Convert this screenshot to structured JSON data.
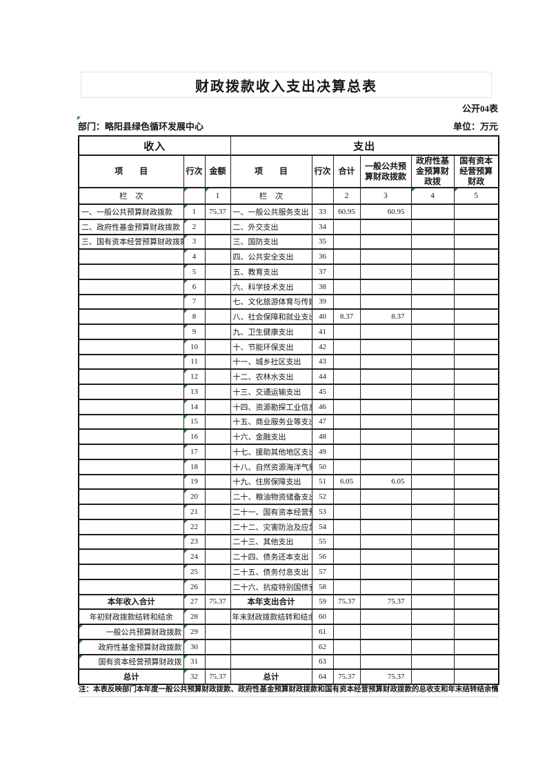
{
  "page": {
    "title": "财政拨款收入支出决算总表",
    "form_code": "公开04表",
    "department": "部门：略阳县绿色循环发展中心",
    "unit": "单位：万元",
    "note": "注：本表反映部门本年度一般公共预算财政拨款、政府性基金预算财政拨款和国有资本经营预算财政拨款的总收支和年末结转结余情况。"
  },
  "colors": {
    "triangle_marker": "#1f8b1f",
    "grid": "#1c1c1c"
  },
  "header": {
    "income_section": "收入",
    "expense_section": "支出",
    "item": "项　　目",
    "rowno": "行次",
    "amount": "金额",
    "total": "合计",
    "col_general": "一般公共预算财政拨款",
    "col_govfund": "政府性基金预算财政拨",
    "col_statecap": "国有资本经营预算财政",
    "colnum_label": "栏　次",
    "col1": "1",
    "col2": "2",
    "col3": "3",
    "col4": "4",
    "col5": "5"
  },
  "table": {
    "rows": [
      {
        "ii": "一、一般公共预算财政拨款",
        "is": "item",
        "in": "1",
        "ia": "75.37",
        "ei": "一、一般公共服务支出",
        "es": "item",
        "en": "33",
        "et": "60.95",
        "eg": "60.95",
        "ef": "",
        "ec": ""
      },
      {
        "ii": "二、政府性基金预算财政拨款",
        "is": "item",
        "in": "2",
        "ia": "",
        "ei": "二、外交支出",
        "es": "item",
        "en": "34",
        "et": "",
        "eg": "",
        "ef": "",
        "ec": ""
      },
      {
        "ii": "三、国有资本经营预算财政拨款",
        "is": "item",
        "in": "3",
        "ia": "",
        "ei": "三、国防支出",
        "es": "item",
        "en": "35",
        "et": "",
        "eg": "",
        "ef": "",
        "ec": ""
      },
      {
        "ii": "",
        "is": "item",
        "in": "4",
        "ia": "",
        "ei": "四、公共安全支出",
        "es": "item",
        "en": "36",
        "et": "",
        "eg": "",
        "ef": "",
        "ec": ""
      },
      {
        "ii": "",
        "is": "item",
        "in": "5",
        "ia": "",
        "ei": "五、教育支出",
        "es": "item",
        "en": "37",
        "et": "",
        "eg": "",
        "ef": "",
        "ec": ""
      },
      {
        "ii": "",
        "is": "item",
        "in": "6",
        "ia": "",
        "ei": "六、科学技术支出",
        "es": "item",
        "en": "38",
        "et": "",
        "eg": "",
        "ef": "",
        "ec": ""
      },
      {
        "ii": "",
        "is": "item",
        "in": "7",
        "ia": "",
        "ei": "七、文化旅游体育与传媒支",
        "es": "item",
        "en": "39",
        "et": "",
        "eg": "",
        "ef": "",
        "ec": ""
      },
      {
        "ii": "",
        "is": "item",
        "in": "8",
        "ia": "",
        "ei": "八、社会保障和就业支出",
        "es": "item",
        "en": "40",
        "et": "8.37",
        "eg": "8.37",
        "ef": "",
        "ec": ""
      },
      {
        "ii": "",
        "is": "item",
        "in": "9",
        "ia": "",
        "ei": "九、卫生健康支出",
        "es": "item",
        "en": "41",
        "et": "",
        "eg": "",
        "ef": "",
        "ec": ""
      },
      {
        "ii": "",
        "is": "item",
        "in": "10",
        "ia": "",
        "ei": "十、节能环保支出",
        "es": "item",
        "en": "42",
        "et": "",
        "eg": "",
        "ef": "",
        "ec": ""
      },
      {
        "ii": "",
        "is": "item",
        "in": "11",
        "ia": "",
        "ei": "十一、城乡社区支出",
        "es": "item",
        "en": "43",
        "et": "",
        "eg": "",
        "ef": "",
        "ec": ""
      },
      {
        "ii": "",
        "is": "item",
        "in": "12",
        "ia": "",
        "ei": "十二、农林水支出",
        "es": "item",
        "en": "44",
        "et": "",
        "eg": "",
        "ef": "",
        "ec": ""
      },
      {
        "ii": "",
        "is": "item",
        "in": "13",
        "ia": "",
        "ei": "十三、交通运输支出",
        "es": "item",
        "en": "45",
        "et": "",
        "eg": "",
        "ef": "",
        "ec": ""
      },
      {
        "ii": "",
        "is": "item",
        "in": "14",
        "ia": "",
        "ei": "十四、资源勘探工业信息等",
        "es": "item",
        "en": "46",
        "et": "",
        "eg": "",
        "ef": "",
        "ec": ""
      },
      {
        "ii": "",
        "is": "item",
        "in": "15",
        "ia": "",
        "ei": "十五、商业服务业等支出",
        "es": "item",
        "en": "47",
        "et": "",
        "eg": "",
        "ef": "",
        "ec": ""
      },
      {
        "ii": "",
        "is": "item",
        "in": "16",
        "ia": "",
        "ei": "十六、金融支出",
        "es": "item",
        "en": "48",
        "et": "",
        "eg": "",
        "ef": "",
        "ec": ""
      },
      {
        "ii": "",
        "is": "item",
        "in": "17",
        "ia": "",
        "ei": "十七、援助其他地区支出",
        "es": "item",
        "en": "49",
        "et": "",
        "eg": "",
        "ef": "",
        "ec": ""
      },
      {
        "ii": "",
        "is": "item",
        "in": "18",
        "ia": "",
        "ei": "十八、自然资源海洋气象等",
        "es": "item",
        "en": "50",
        "et": "",
        "eg": "",
        "ef": "",
        "ec": ""
      },
      {
        "ii": "",
        "is": "item",
        "in": "19",
        "ia": "",
        "ei": "十九、住房保障支出",
        "es": "item",
        "en": "51",
        "et": "6.05",
        "eg": "6.05",
        "ef": "",
        "ec": ""
      },
      {
        "ii": "",
        "is": "item",
        "in": "20",
        "ia": "",
        "ei": "二十、粮油物资储备支出",
        "es": "item",
        "en": "52",
        "et": "",
        "eg": "",
        "ef": "",
        "ec": ""
      },
      {
        "ii": "",
        "is": "item",
        "in": "21",
        "ia": "",
        "ei": "二十一、国有资本经营预算",
        "es": "item",
        "en": "53",
        "et": "",
        "eg": "",
        "ef": "",
        "ec": ""
      },
      {
        "ii": "",
        "is": "item",
        "in": "22",
        "ia": "",
        "ei": "二十二、灾害防治及应急管",
        "es": "item",
        "en": "54",
        "et": "",
        "eg": "",
        "ef": "",
        "ec": ""
      },
      {
        "ii": "",
        "is": "item",
        "in": "23",
        "ia": "",
        "ei": "二十三、其他支出",
        "es": "item",
        "en": "55",
        "et": "",
        "eg": "",
        "ef": "",
        "ec": ""
      },
      {
        "ii": "",
        "is": "item",
        "in": "24",
        "ia": "",
        "ei": "二十四、债务还本支出",
        "es": "item",
        "en": "56",
        "et": "",
        "eg": "",
        "ef": "",
        "ec": ""
      },
      {
        "ii": "",
        "is": "item",
        "in": "25",
        "ia": "",
        "ei": "二十五、债务付息支出",
        "es": "item",
        "en": "57",
        "et": "",
        "eg": "",
        "ef": "",
        "ec": ""
      },
      {
        "ii": "",
        "is": "item",
        "in": "26",
        "ia": "",
        "ei": "二十六、抗疫特别国债安排",
        "es": "item",
        "en": "58",
        "et": "",
        "eg": "",
        "ef": "",
        "ec": ""
      },
      {
        "ii": "本年收入合计",
        "is": "total",
        "in": "27",
        "ia": "75.37",
        "ei": "本年支出合计",
        "es": "total",
        "en": "59",
        "et": "75.37",
        "eg": "75.37",
        "ef": "",
        "ec": ""
      },
      {
        "ii": "年初财政拨款结转和结余",
        "is": "center",
        "in": "28",
        "ia": "",
        "ei": "年末财政拨款结转和结余",
        "es": "center",
        "en": "60",
        "et": "",
        "eg": "",
        "ef": "",
        "ec": ""
      },
      {
        "ii": "一般公共预算财政拨款",
        "is": "right",
        "in": "29",
        "ia": "",
        "ei": "",
        "es": "item",
        "en": "61",
        "et": "",
        "eg": "",
        "ef": "",
        "ec": "",
        "tri_item": true
      },
      {
        "ii": "政府性基金预算财政拨款",
        "is": "right",
        "in": "30",
        "ia": "",
        "ei": "",
        "es": "item",
        "en": "62",
        "et": "",
        "eg": "",
        "ef": "",
        "ec": "",
        "tri_item": true
      },
      {
        "ii": "国有资本经营预算财政拨",
        "is": "right",
        "in": "31",
        "ia": "",
        "ei": "",
        "es": "item",
        "en": "63",
        "et": "",
        "eg": "",
        "ef": "",
        "ec": "",
        "tri_item": true
      },
      {
        "ii": "总计",
        "is": "total",
        "in": "32",
        "ia": "75.37",
        "ei": "总计",
        "es": "total",
        "en": "64",
        "et": "75.37",
        "eg": "75.37",
        "ef": "",
        "ec": ""
      }
    ]
  }
}
